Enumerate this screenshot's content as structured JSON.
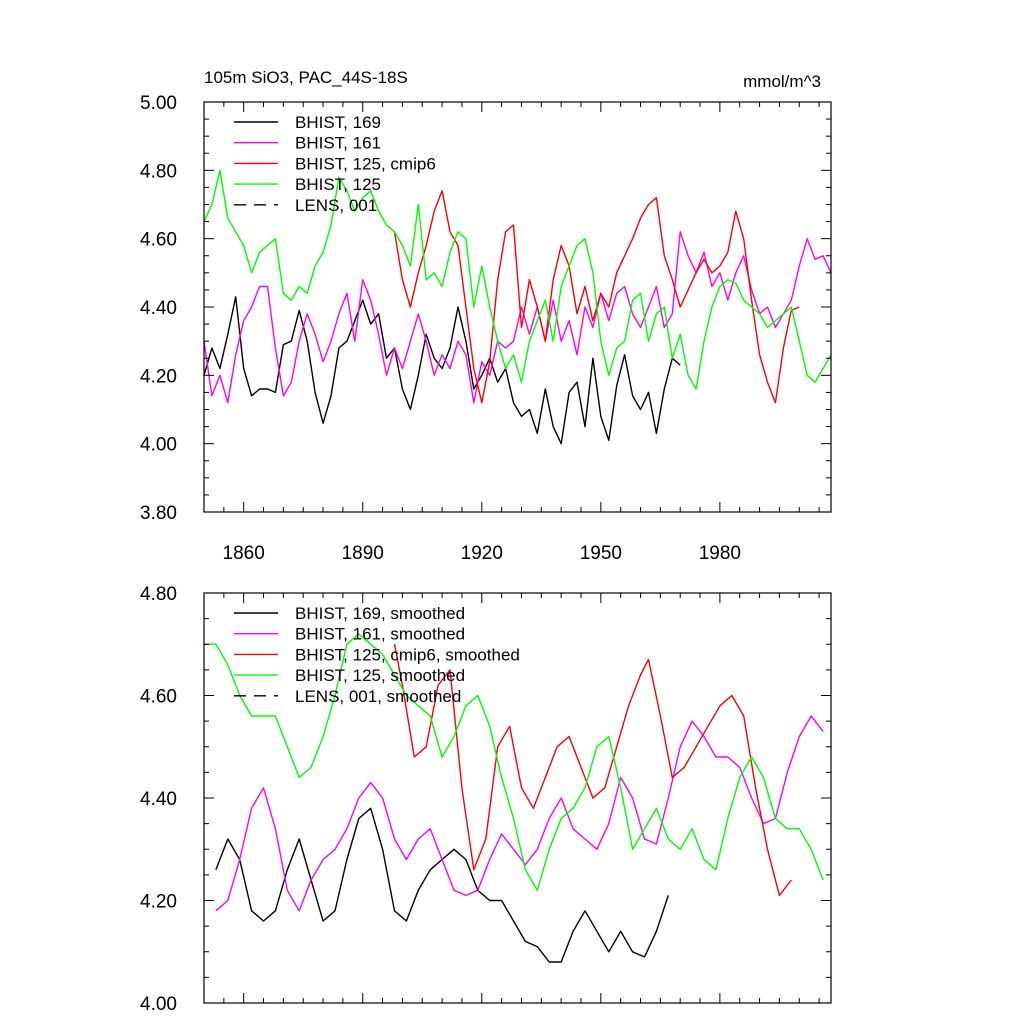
{
  "chart_data": [
    {
      "type": "line",
      "title": "105m SiO3, PAC_44S-18S",
      "units": "mmol/m^3",
      "xlabel": "",
      "ylabel": "",
      "xlim": [
        1850,
        2008
      ],
      "ylim": [
        3.8,
        5.0
      ],
      "x_ticks": [
        1860,
        1890,
        1920,
        1950,
        1980
      ],
      "x_tick_labels": [
        "1860",
        "1890",
        "1920",
        "1950",
        "1980"
      ],
      "y_ticks": [
        3.8,
        4.0,
        4.2,
        4.4,
        4.6,
        4.8,
        5.0
      ],
      "y_tick_labels": [
        "3.80",
        "4.00",
        "4.20",
        "4.40",
        "4.60",
        "4.80",
        "5.00"
      ],
      "grid": false,
      "legend_position": "top-left",
      "legend": [
        {
          "label": "BHIST, 169",
          "color": "#000000",
          "dash": "solid"
        },
        {
          "label": "BHIST, 161",
          "color": "#ff00ff",
          "dash": "solid"
        },
        {
          "label": "BHIST, 125, cmip6",
          "color": "#ff0000",
          "dash": "solid"
        },
        {
          "label": "BHIST, 125",
          "color": "#00ff00",
          "dash": "solid"
        },
        {
          "label": "LENS, 001",
          "color": "#000000",
          "dash": "dashed"
        }
      ],
      "series": [
        {
          "name": "BHIST, 169",
          "color": "#000000",
          "x": [
            1850,
            1852,
            1854,
            1856,
            1858,
            1860,
            1862,
            1864,
            1866,
            1868,
            1870,
            1872,
            1874,
            1876,
            1878,
            1880,
            1882,
            1884,
            1886,
            1888,
            1890,
            1892,
            1894,
            1896,
            1898,
            1900,
            1902,
            1904,
            1906,
            1908,
            1910,
            1912,
            1914,
            1916,
            1918,
            1920,
            1922,
            1924,
            1926,
            1928,
            1930,
            1932,
            1934,
            1936,
            1938,
            1940,
            1942,
            1944,
            1946,
            1948,
            1950,
            1952,
            1954,
            1956,
            1958,
            1960,
            1962,
            1964,
            1966,
            1968,
            1970
          ],
          "y": [
            4.2,
            4.28,
            4.22,
            4.32,
            4.43,
            4.22,
            4.14,
            4.16,
            4.16,
            4.15,
            4.29,
            4.3,
            4.39,
            4.3,
            4.15,
            4.06,
            4.14,
            4.28,
            4.3,
            4.36,
            4.42,
            4.35,
            4.38,
            4.25,
            4.28,
            4.16,
            4.1,
            4.2,
            4.32,
            4.25,
            4.22,
            4.28,
            4.4,
            4.3,
            4.16,
            4.2,
            4.25,
            4.18,
            4.22,
            4.12,
            4.08,
            4.1,
            4.03,
            4.16,
            4.05,
            4.0,
            4.15,
            4.18,
            4.05,
            4.25,
            4.08,
            4.01,
            4.17,
            4.26,
            4.14,
            4.1,
            4.15,
            4.03,
            4.16,
            4.25,
            4.23
          ]
        },
        {
          "name": "BHIST, 161",
          "color": "#ff00ff",
          "x": [
            1850,
            1852,
            1854,
            1856,
            1858,
            1860,
            1862,
            1864,
            1866,
            1868,
            1870,
            1872,
            1874,
            1876,
            1878,
            1880,
            1882,
            1884,
            1886,
            1888,
            1890,
            1892,
            1894,
            1896,
            1898,
            1900,
            1902,
            1904,
            1906,
            1908,
            1910,
            1912,
            1914,
            1916,
            1918,
            1920,
            1922,
            1924,
            1926,
            1928,
            1930,
            1932,
            1934,
            1936,
            1938,
            1940,
            1942,
            1944,
            1946,
            1948,
            1950,
            1952,
            1954,
            1956,
            1958,
            1960,
            1962,
            1964,
            1966,
            1968,
            1970,
            1972,
            1974,
            1976,
            1978,
            1980,
            1982,
            1984,
            1986,
            1988,
            1990,
            1992,
            1994,
            1996,
            1998,
            2000,
            2002,
            2004,
            2006,
            2008
          ],
          "y": [
            4.3,
            4.14,
            4.2,
            4.12,
            4.26,
            4.36,
            4.4,
            4.46,
            4.46,
            4.28,
            4.14,
            4.18,
            4.3,
            4.38,
            4.32,
            4.24,
            4.3,
            4.38,
            4.44,
            4.3,
            4.48,
            4.42,
            4.32,
            4.2,
            4.28,
            4.22,
            4.3,
            4.38,
            4.3,
            4.2,
            4.26,
            4.22,
            4.3,
            4.26,
            4.12,
            4.24,
            4.2,
            4.3,
            4.28,
            4.3,
            4.4,
            4.32,
            4.4,
            4.3,
            4.42,
            4.3,
            4.36,
            4.26,
            4.4,
            4.34,
            4.44,
            4.36,
            4.44,
            4.46,
            4.38,
            4.34,
            4.4,
            4.46,
            4.34,
            4.38,
            4.62,
            4.55,
            4.5,
            4.56,
            4.46,
            4.5,
            4.42,
            4.5,
            4.55,
            4.45,
            4.38,
            4.4,
            4.34,
            4.38,
            4.42,
            4.52,
            4.6,
            4.54,
            4.55,
            4.5
          ]
        },
        {
          "name": "BHIST, 125, cmip6",
          "color": "#ff0000",
          "x": [
            1898,
            1900,
            1902,
            1904,
            1906,
            1908,
            1910,
            1912,
            1914,
            1916,
            1918,
            1920,
            1922,
            1924,
            1926,
            1928,
            1930,
            1932,
            1934,
            1936,
            1938,
            1940,
            1942,
            1944,
            1946,
            1948,
            1950,
            1952,
            1954,
            1956,
            1958,
            1960,
            1962,
            1964,
            1966,
            1968,
            1970,
            1972,
            1974,
            1976,
            1978,
            1980,
            1982,
            1984,
            1986,
            1988,
            1990,
            1992,
            1994,
            1996,
            1998,
            2000
          ],
          "y": [
            4.62,
            4.48,
            4.4,
            4.5,
            4.58,
            4.68,
            4.74,
            4.62,
            4.58,
            4.4,
            4.22,
            4.12,
            4.24,
            4.48,
            4.62,
            4.64,
            4.34,
            4.48,
            4.4,
            4.3,
            4.48,
            4.58,
            4.52,
            4.38,
            4.46,
            4.36,
            4.44,
            4.4,
            4.5,
            4.55,
            4.6,
            4.66,
            4.7,
            4.72,
            4.55,
            4.48,
            4.4,
            4.45,
            4.5,
            4.54,
            4.5,
            4.52,
            4.56,
            4.68,
            4.6,
            4.42,
            4.26,
            4.18,
            4.12,
            4.28,
            4.39,
            4.4
          ]
        },
        {
          "name": "BHIST, 125",
          "color": "#00ff00",
          "x": [
            1850,
            1852,
            1854,
            1856,
            1858,
            1860,
            1862,
            1864,
            1866,
            1868,
            1870,
            1872,
            1874,
            1876,
            1878,
            1880,
            1882,
            1884,
            1886,
            1888,
            1890,
            1892,
            1894,
            1896,
            1898,
            1900,
            1902,
            1904,
            1906,
            1908,
            1910,
            1912,
            1914,
            1916,
            1918,
            1920,
            1922,
            1924,
            1926,
            1928,
            1930,
            1932,
            1934,
            1936,
            1938,
            1940,
            1942,
            1944,
            1946,
            1948,
            1950,
            1952,
            1954,
            1956,
            1958,
            1960,
            1962,
            1964,
            1966,
            1968,
            1970,
            1972,
            1974,
            1976,
            1978,
            1980,
            1982,
            1984,
            1986,
            1988,
            1990,
            1992,
            1994,
            1996,
            1998,
            2000,
            2002,
            2004,
            2006,
            2008
          ],
          "y": [
            4.65,
            4.7,
            4.8,
            4.66,
            4.62,
            4.58,
            4.5,
            4.56,
            4.58,
            4.6,
            4.44,
            4.42,
            4.46,
            4.44,
            4.52,
            4.56,
            4.64,
            4.78,
            4.74,
            4.68,
            4.72,
            4.74,
            4.68,
            4.64,
            4.62,
            4.58,
            4.52,
            4.7,
            4.48,
            4.5,
            4.46,
            4.56,
            4.62,
            4.6,
            4.4,
            4.52,
            4.4,
            4.3,
            4.22,
            4.26,
            4.18,
            4.3,
            4.36,
            4.42,
            4.3,
            4.46,
            4.52,
            4.58,
            4.6,
            4.5,
            4.3,
            4.2,
            4.28,
            4.3,
            4.42,
            4.44,
            4.3,
            4.38,
            4.4,
            4.25,
            4.32,
            4.2,
            4.16,
            4.3,
            4.4,
            4.46,
            4.48,
            4.47,
            4.42,
            4.4,
            4.38,
            4.34,
            4.36,
            4.38,
            4.4,
            4.3,
            4.2,
            4.18,
            4.22,
            4.26
          ]
        }
      ]
    },
    {
      "type": "line",
      "title": "",
      "xlabel": "",
      "ylabel": "",
      "xlim": [
        1850,
        2008
      ],
      "ylim": [
        4.0,
        4.8
      ],
      "x_ticks": [
        1860,
        1890,
        1920,
        1950,
        1980
      ],
      "x_tick_labels": [],
      "y_ticks": [
        4.0,
        4.2,
        4.4,
        4.6,
        4.8
      ],
      "y_tick_labels": [
        "4.00",
        "4.20",
        "4.40",
        "4.60",
        "4.80"
      ],
      "grid": false,
      "legend_position": "top-left",
      "legend": [
        {
          "label": "BHIST, 169, smoothed",
          "color": "#000000",
          "dash": "solid"
        },
        {
          "label": "BHIST, 161, smoothed",
          "color": "#ff00ff",
          "dash": "solid"
        },
        {
          "label": "BHIST, 125, cmip6, smoothed",
          "color": "#ff0000",
          "dash": "solid"
        },
        {
          "label": "BHIST, 125, smoothed",
          "color": "#00ff00",
          "dash": "solid"
        },
        {
          "label": "LENS, 001, smoothed",
          "color": "#000000",
          "dash": "dashed"
        }
      ],
      "series": [
        {
          "name": "BHIST, 169, smoothed",
          "color": "#000000",
          "x": [
            1853,
            1856,
            1859,
            1862,
            1865,
            1868,
            1871,
            1874,
            1877,
            1880,
            1883,
            1886,
            1889,
            1892,
            1895,
            1898,
            1901,
            1904,
            1907,
            1910,
            1913,
            1916,
            1919,
            1922,
            1925,
            1928,
            1931,
            1934,
            1937,
            1940,
            1943,
            1946,
            1949,
            1952,
            1955,
            1958,
            1961,
            1964,
            1967
          ],
          "y": [
            4.26,
            4.32,
            4.28,
            4.18,
            4.16,
            4.18,
            4.26,
            4.32,
            4.24,
            4.16,
            4.18,
            4.28,
            4.36,
            4.38,
            4.3,
            4.18,
            4.16,
            4.22,
            4.26,
            4.28,
            4.3,
            4.28,
            4.22,
            4.2,
            4.2,
            4.16,
            4.12,
            4.11,
            4.08,
            4.08,
            4.14,
            4.18,
            4.14,
            4.1,
            4.14,
            4.1,
            4.09,
            4.14,
            4.21
          ]
        },
        {
          "name": "BHIST, 161, smoothed",
          "color": "#ff00ff",
          "x": [
            1853,
            1856,
            1859,
            1862,
            1865,
            1868,
            1871,
            1874,
            1877,
            1880,
            1883,
            1886,
            1889,
            1892,
            1895,
            1898,
            1901,
            1904,
            1907,
            1910,
            1913,
            1916,
            1919,
            1922,
            1925,
            1928,
            1931,
            1934,
            1937,
            1940,
            1943,
            1946,
            1949,
            1952,
            1955,
            1958,
            1961,
            1964,
            1967,
            1970,
            1973,
            1976,
            1979,
            1982,
            1985,
            1988,
            1991,
            1994,
            1997,
            2000,
            2003,
            2006
          ],
          "y": [
            4.18,
            4.2,
            4.28,
            4.38,
            4.42,
            4.34,
            4.22,
            4.18,
            4.24,
            4.28,
            4.3,
            4.34,
            4.4,
            4.43,
            4.4,
            4.32,
            4.28,
            4.32,
            4.34,
            4.28,
            4.22,
            4.21,
            4.22,
            4.28,
            4.33,
            4.3,
            4.27,
            4.3,
            4.36,
            4.4,
            4.34,
            4.32,
            4.3,
            4.35,
            4.44,
            4.4,
            4.32,
            4.31,
            4.4,
            4.5,
            4.55,
            4.52,
            4.48,
            4.48,
            4.46,
            4.4,
            4.35,
            4.36,
            4.45,
            4.52,
            4.56,
            4.53
          ]
        },
        {
          "name": "BHIST, 125, cmip6, smoothed",
          "color": "#ff0000",
          "x": [
            1898,
            1900,
            1903,
            1906,
            1909,
            1912,
            1915,
            1918,
            1921,
            1924,
            1927,
            1930,
            1933,
            1936,
            1939,
            1942,
            1945,
            1948,
            1951,
            1954,
            1957,
            1960,
            1962,
            1965,
            1968,
            1971,
            1974,
            1977,
            1980,
            1983,
            1986,
            1989,
            1992,
            1995,
            1998
          ],
          "y": [
            4.7,
            4.62,
            4.48,
            4.5,
            4.62,
            4.65,
            4.42,
            4.26,
            4.32,
            4.5,
            4.54,
            4.42,
            4.38,
            4.44,
            4.5,
            4.52,
            4.46,
            4.4,
            4.42,
            4.5,
            4.58,
            4.64,
            4.67,
            4.56,
            4.44,
            4.46,
            4.5,
            4.54,
            4.58,
            4.6,
            4.56,
            4.42,
            4.3,
            4.21,
            4.24
          ]
        },
        {
          "name": "BHIST, 125, smoothed",
          "color": "#00ff00",
          "x": [
            1850,
            1853,
            1856,
            1859,
            1862,
            1865,
            1868,
            1871,
            1874,
            1877,
            1880,
            1883,
            1886,
            1889,
            1892,
            1895,
            1898,
            1901,
            1904,
            1907,
            1910,
            1913,
            1916,
            1919,
            1922,
            1925,
            1928,
            1931,
            1934,
            1937,
            1940,
            1943,
            1946,
            1949,
            1952,
            1955,
            1958,
            1961,
            1964,
            1967,
            1970,
            1973,
            1976,
            1979,
            1982,
            1985,
            1988,
            1991,
            1994,
            1997,
            2000,
            2003,
            2006
          ],
          "y": [
            4.7,
            4.7,
            4.66,
            4.6,
            4.56,
            4.56,
            4.56,
            4.5,
            4.44,
            4.46,
            4.52,
            4.6,
            4.7,
            4.72,
            4.7,
            4.68,
            4.64,
            4.6,
            4.58,
            4.56,
            4.48,
            4.52,
            4.58,
            4.6,
            4.54,
            4.44,
            4.36,
            4.26,
            4.22,
            4.3,
            4.36,
            4.38,
            4.42,
            4.5,
            4.52,
            4.42,
            4.3,
            4.34,
            4.38,
            4.32,
            4.3,
            4.34,
            4.28,
            4.26,
            4.36,
            4.44,
            4.48,
            4.44,
            4.36,
            4.34,
            4.34,
            4.3,
            4.24
          ]
        }
      ]
    }
  ]
}
